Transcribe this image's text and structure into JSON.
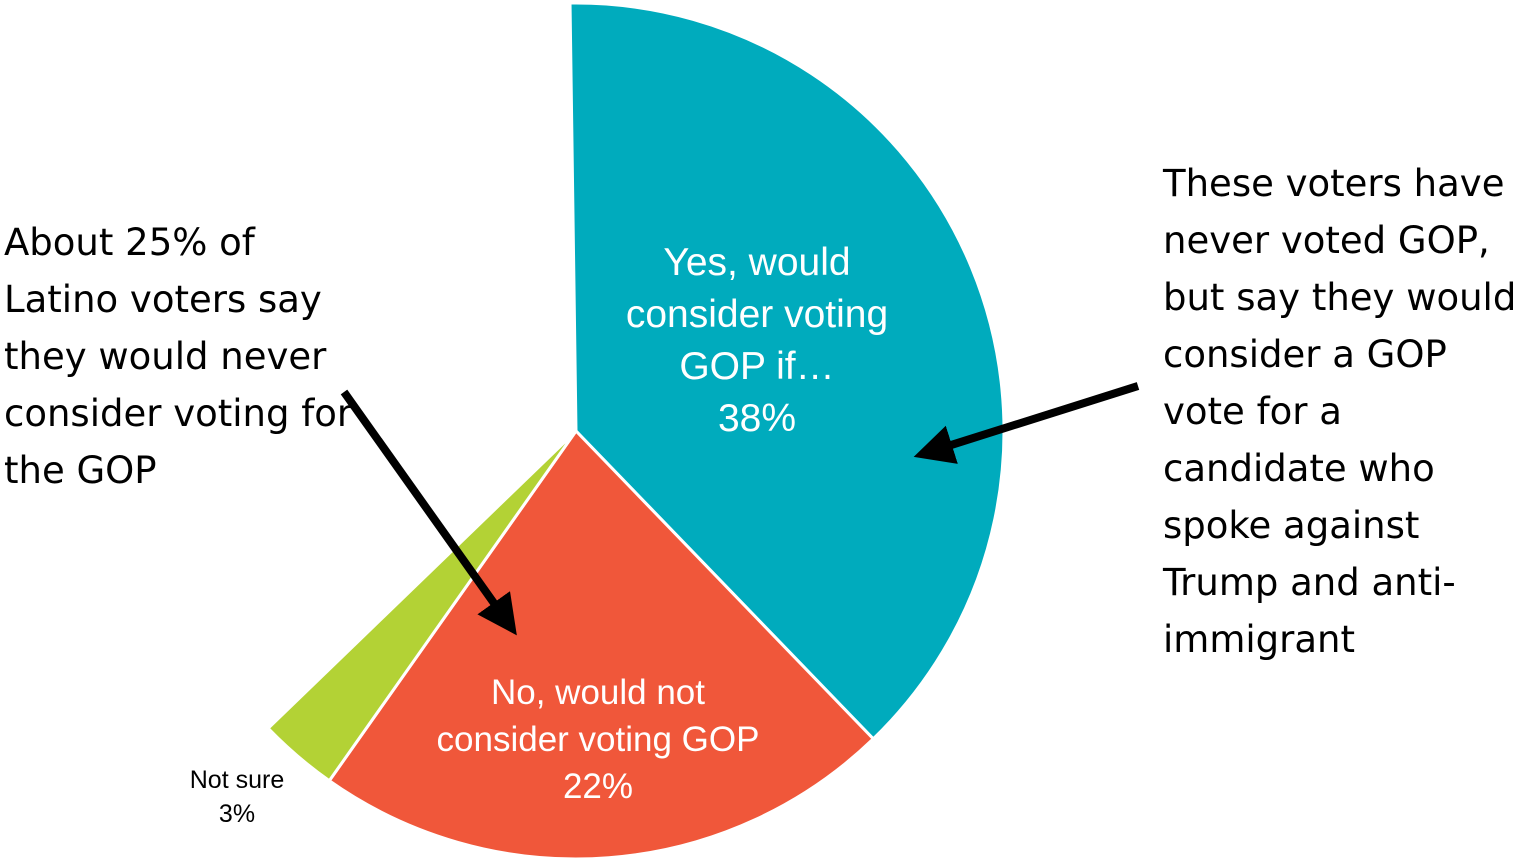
{
  "chart_data": {
    "type": "pie",
    "slices": [
      {
        "label_lines": [
          "Yes, would",
          "consider voting",
          "GOP if…",
          "38%"
        ],
        "value": 38,
        "color": "#00ABBD"
      },
      {
        "label_lines": [
          "No, would not",
          "consider voting GOP",
          "22%"
        ],
        "value": 22,
        "color": "#F0573A"
      },
      {
        "label_lines": [
          "Not sure",
          "3%"
        ],
        "value": 3,
        "color": "#B3D235"
      }
    ],
    "annotations": {
      "left": [
        "About 25% of",
        "Latino voters say",
        "they would never",
        "consider voting for",
        "the GOP"
      ],
      "right": [
        "These voters have",
        "never voted GOP,",
        "but say they would",
        "consider a GOP",
        "vote for a",
        "candidate who",
        "spoke against",
        "Trump and anti-",
        "immigrant"
      ]
    },
    "arrow_color": "#000000"
  }
}
